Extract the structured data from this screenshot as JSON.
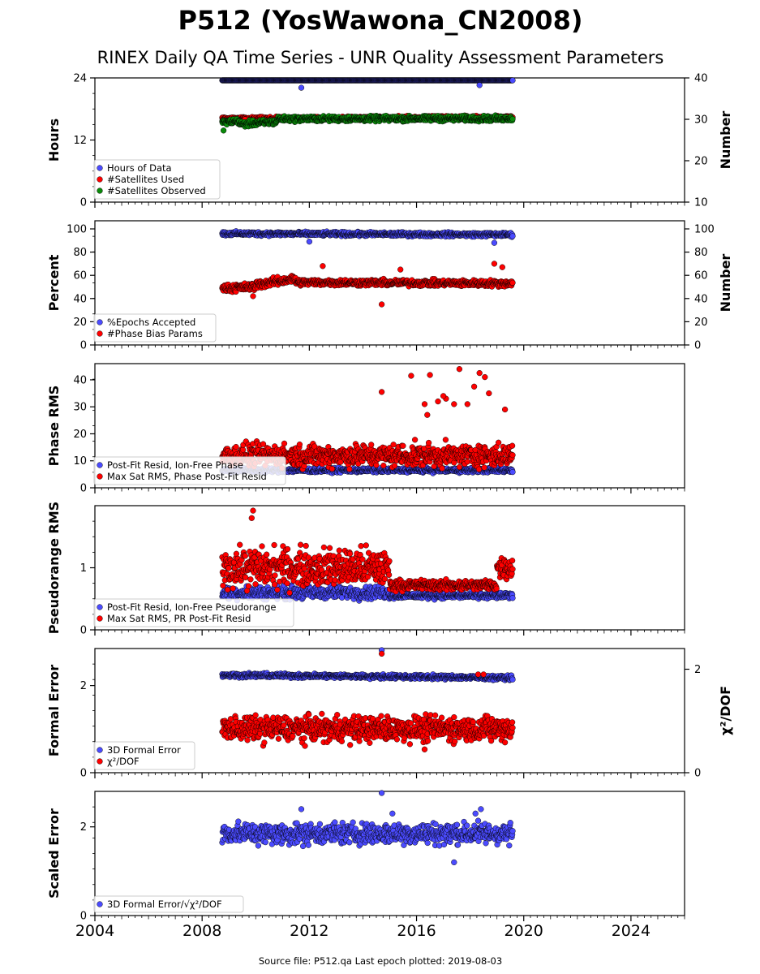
{
  "title": "P512 (YosWawona_CN2008)",
  "subtitle": "RINEX Daily QA Time Series - UNR Quality Assessment Parameters",
  "footer": "Source file: P512.qa Last epoch plotted: 2019-08-03",
  "colors": {
    "blue": "#4b4bff",
    "red": "#ff0000",
    "green": "#0a8a0a",
    "edge": "#000000"
  },
  "chart_data": [
    {
      "type": "scatter",
      "ylabel": "Hours",
      "ylabel_right": "Number",
      "xlim": [
        2004,
        2026
      ],
      "ylim": [
        0,
        24
      ],
      "ylim_right": [
        10,
        40
      ],
      "yticks": [
        "0",
        "12",
        "24"
      ],
      "yticks_right": [
        "10",
        "20",
        "30",
        "40"
      ],
      "legend": [
        "Hours of Data",
        "#Satellites Used",
        "#Satellites Observed"
      ],
      "series": [
        {
          "name": "Hours of Data",
          "color": "blue",
          "axis": "left",
          "segments": [
            {
              "x": [
                2008.75,
                2019.6
              ],
              "y": [
                23.8,
                23.8
              ],
              "spread": 0.3
            }
          ],
          "outliers": [
            [
              2011.7,
              22.1
            ],
            [
              2018.35,
              22.6
            ]
          ]
        },
        {
          "name": "#Satellites Used",
          "color": "red",
          "axis": "right",
          "segments": [
            {
              "x": [
                2008.75,
                2019.6
              ],
              "y": [
                30.1,
                30.5
              ],
              "spread": 0.6
            }
          ],
          "outliers": [
            [
              2009.6,
              30.0
            ]
          ]
        },
        {
          "name": "#Satellites Observed",
          "color": "green",
          "axis": "right",
          "segments": [
            {
              "x": [
                2008.75,
                2009.4
              ],
              "y": [
                29.3,
                29.6
              ],
              "spread": 0.9
            },
            {
              "x": [
                2009.4,
                2010.8
              ],
              "y": [
                28.8,
                29.4
              ],
              "spread": 1.0
            },
            {
              "x": [
                2010.8,
                2019.6
              ],
              "y": [
                30.1,
                30.2
              ],
              "spread": 0.9
            }
          ],
          "outliers": [
            [
              2008.8,
              27.3
            ]
          ]
        }
      ]
    },
    {
      "type": "scatter",
      "ylabel": "Percent",
      "ylabel_right": "Number",
      "xlim": [
        2004,
        2026
      ],
      "ylim": [
        0,
        107
      ],
      "ylim_right": [
        0,
        107
      ],
      "yticks": [
        "0",
        "20",
        "40",
        "60",
        "80",
        "100"
      ],
      "yticks_right": [
        "0",
        "20",
        "40",
        "60",
        "80",
        "100"
      ],
      "legend": [
        "%Epochs Accepted",
        "#Phase Bias Params"
      ],
      "series": [
        {
          "name": "%Epochs Accepted",
          "color": "blue",
          "axis": "left",
          "segments": [
            {
              "x": [
                2008.75,
                2019.6
              ],
              "y": [
                96,
                95
              ],
              "spread": 2.5
            }
          ],
          "outliers": [
            [
              2012.0,
              89
            ],
            [
              2018.9,
              88
            ]
          ]
        },
        {
          "name": "#Phase Bias Params",
          "color": "red",
          "axis": "right",
          "segments": [
            {
              "x": [
                2008.75,
                2010.0
              ],
              "y": [
                49,
                50
              ],
              "spread": 5
            },
            {
              "x": [
                2010.0,
                2011.5
              ],
              "y": [
                52,
                57
              ],
              "spread": 5
            },
            {
              "x": [
                2011.5,
                2019.6
              ],
              "y": [
                54,
                53
              ],
              "spread": 4
            }
          ],
          "outliers": [
            [
              2014.7,
              35
            ],
            [
              2015.4,
              65
            ],
            [
              2018.9,
              70
            ],
            [
              2019.2,
              67
            ],
            [
              2009.9,
              42
            ],
            [
              2012.5,
              68
            ]
          ]
        }
      ]
    },
    {
      "type": "scatter",
      "ylabel": "Phase RMS",
      "xlim": [
        2004,
        2026
      ],
      "ylim": [
        0,
        46
      ],
      "yticks": [
        "0",
        "10",
        "20",
        "30",
        "40"
      ],
      "legend": [
        "Post-Fit Resid, Ion-Free Phase",
        "Max Sat RMS, Phase Post-Fit Resid"
      ],
      "series": [
        {
          "name": "Post-Fit Resid, Ion-Free Phase",
          "color": "blue",
          "axis": "left",
          "segments": [
            {
              "x": [
                2008.75,
                2019.6
              ],
              "y": [
                6.5,
                6.5
              ],
              "spread": 1.2
            }
          ],
          "outliers": []
        },
        {
          "name": "Max Sat RMS, Phase Post-Fit Resid",
          "color": "red",
          "axis": "left",
          "segments": [
            {
              "x": [
                2008.75,
                2019.6
              ],
              "y": [
                12,
                12
              ],
              "spread": 6
            }
          ],
          "outliers": [
            [
              2015.8,
              41.5
            ],
            [
              2016.5,
              41.8
            ],
            [
              2017.6,
              44
            ],
            [
              2018.15,
              37.5
            ],
            [
              2018.55,
              41
            ],
            [
              2018.35,
              42.5
            ],
            [
              2017.1,
              33
            ],
            [
              2016.8,
              32
            ],
            [
              2018.7,
              35
            ],
            [
              2014.7,
              35.5
            ],
            [
              2017.4,
              31
            ],
            [
              2017.9,
              31
            ],
            [
              2019.3,
              29
            ],
            [
              2016.3,
              31
            ],
            [
              2016.4,
              27
            ],
            [
              2017.0,
              34
            ]
          ]
        }
      ]
    },
    {
      "type": "scatter",
      "ylabel": "Pseudorange RMS",
      "xlim": [
        2004,
        2026
      ],
      "ylim": [
        0,
        2.0
      ],
      "yticks": [
        "0",
        "1"
      ],
      "legend": [
        "Post-Fit Resid, Ion-Free Pseudorange",
        "Max Sat RMS, PR Post-Fit Resid"
      ],
      "series": [
        {
          "name": "Post-Fit Resid, Ion-Free Pseudorange",
          "color": "blue",
          "axis": "left",
          "segments": [
            {
              "x": [
                2008.75,
                2015.0
              ],
              "y": [
                0.6,
                0.6
              ],
              "spread": 0.15
            },
            {
              "x": [
                2015.0,
                2019.6
              ],
              "y": [
                0.55,
                0.55
              ],
              "spread": 0.07
            }
          ],
          "outliers": []
        },
        {
          "name": "Max Sat RMS, PR Post-Fit Resid",
          "color": "red",
          "axis": "left",
          "segments": [
            {
              "x": [
                2008.75,
                2015.0
              ],
              "y": [
                1.0,
                1.0
              ],
              "spread": 0.45
            },
            {
              "x": [
                2015.0,
                2019.0
              ],
              "y": [
                0.72,
                0.72
              ],
              "spread": 0.12
            },
            {
              "x": [
                2019.0,
                2019.6
              ],
              "y": [
                1.0,
                1.0
              ],
              "spread": 0.25
            }
          ],
          "outliers": [
            [
              2009.9,
              1.92
            ],
            [
              2009.85,
              1.8
            ]
          ]
        }
      ]
    },
    {
      "type": "scatter",
      "ylabel": "Formal Error",
      "ylabel_right": "χ²/DOF",
      "xlim": [
        2004,
        2026
      ],
      "ylim": [
        0,
        2.85
      ],
      "ylim_right": [
        0,
        2.4
      ],
      "yticks": [
        "0",
        "2"
      ],
      "yticks_right": [
        "0",
        "2"
      ],
      "legend": [
        "3D Formal Error",
        "χ²/DOF"
      ],
      "series": [
        {
          "name": "3D Formal Error",
          "color": "blue",
          "axis": "left",
          "segments": [
            {
              "x": [
                2008.75,
                2019.6
              ],
              "y": [
                2.24,
                2.18
              ],
              "spread": 0.07
            }
          ],
          "outliers": [
            [
              2014.7,
              2.85
            ]
          ]
        },
        {
          "name": "χ²/DOF",
          "color": "red",
          "axis": "right",
          "segments": [
            {
              "x": [
                2008.75,
                2019.6
              ],
              "y": [
                0.85,
                0.85
              ],
              "spread": 0.35
            }
          ],
          "outliers": [
            [
              2014.7,
              2.3
            ],
            [
              2018.3,
              1.9
            ],
            [
              2018.5,
              1.9
            ],
            [
              2016.3,
              0.45
            ]
          ]
        }
      ]
    },
    {
      "type": "scatter",
      "ylabel": "Scaled Error",
      "xlim": [
        2004,
        2026
      ],
      "ylim": [
        0,
        2.8
      ],
      "yticks": [
        "0",
        "2"
      ],
      "xticks": [
        "2004",
        "2008",
        "2012",
        "2016",
        "2020",
        "2024"
      ],
      "legend": [
        "3D Formal Error/√χ²/DOF"
      ],
      "series": [
        {
          "name": "3D Formal Error/√χ²/DOF",
          "color": "blue",
          "axis": "left",
          "segments": [
            {
              "x": [
                2008.75,
                2019.6
              ],
              "y": [
                1.85,
                1.85
              ],
              "spread": 0.35
            }
          ],
          "outliers": [
            [
              2014.7,
              2.8
            ],
            [
              2011.7,
              2.4
            ],
            [
              2015.1,
              2.3
            ],
            [
              2018.4,
              2.4
            ],
            [
              2018.2,
              2.3
            ],
            [
              2017.4,
              1.2
            ]
          ]
        }
      ]
    }
  ]
}
